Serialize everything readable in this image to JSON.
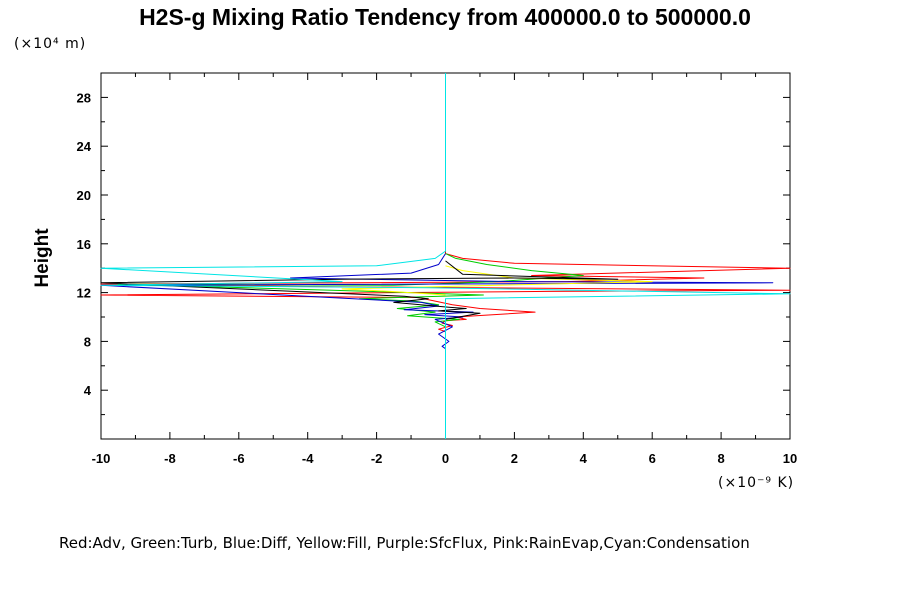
{
  "chart_data": {
    "type": "line",
    "title": "H2S-g Mixing Ratio Tendency from 400000.0 to 500000.0",
    "xlabel": "",
    "ylabel": "Height",
    "x_unit": "(×10⁻⁹ K)",
    "y_unit": "(×10⁴ m)",
    "xlim": [
      -10,
      10
    ],
    "ylim": [
      0,
      30
    ],
    "xticks": [
      "-10",
      "-8",
      "-6",
      "-4",
      "-2",
      "0",
      "2",
      "4",
      "6",
      "8",
      "10"
    ],
    "yticks": [
      "4",
      "8",
      "12",
      "16",
      "20",
      "24",
      "28"
    ],
    "legend_text": "Red:Adv,  Green:Turb,  Blue:Diff,  Yellow:Fill,  Purple:SfcFlux,  Pink:RainEvap,Cyan:Condensation",
    "series": [
      {
        "name": "Adv",
        "color": "#ff0000",
        "points": [
          [
            0,
            7.5
          ],
          [
            0,
            8.8
          ],
          [
            -0.2,
            9.0
          ],
          [
            0.2,
            9.3
          ],
          [
            -0.1,
            9.5
          ],
          [
            0,
            9.7
          ],
          [
            0.6,
            9.8
          ],
          [
            0.3,
            10.0
          ],
          [
            2.6,
            10.4
          ],
          [
            1.0,
            10.7
          ],
          [
            0.2,
            11.0
          ],
          [
            -0.3,
            11.3
          ],
          [
            -0.8,
            11.6
          ],
          [
            -11,
            11.8
          ],
          [
            -1.5,
            12.0
          ],
          [
            3,
            12.1
          ],
          [
            10.5,
            12.2
          ],
          [
            -4,
            12.5
          ],
          [
            -10.5,
            12.7
          ],
          [
            3.5,
            12.9
          ],
          [
            7.5,
            13.2
          ],
          [
            2.5,
            13.4
          ],
          [
            10.5,
            14.0
          ],
          [
            2,
            14.4
          ],
          [
            0.5,
            14.8
          ],
          [
            0,
            15.2
          ],
          [
            0,
            30
          ]
        ]
      },
      {
        "name": "Turb",
        "color": "#00cc00",
        "points": [
          [
            0,
            8.5
          ],
          [
            0,
            9.2
          ],
          [
            -0.3,
            9.6
          ],
          [
            0.4,
            9.8
          ],
          [
            -1.1,
            10.1
          ],
          [
            -0.3,
            10.4
          ],
          [
            -1.4,
            10.7
          ],
          [
            -0.2,
            11.0
          ],
          [
            -0.9,
            11.3
          ],
          [
            -2.5,
            11.5
          ],
          [
            1.1,
            11.8
          ],
          [
            -3.3,
            12.2
          ],
          [
            -9.5,
            12.7
          ],
          [
            -1.5,
            12.6
          ],
          [
            1.5,
            12.9
          ],
          [
            4,
            13.4
          ],
          [
            2.5,
            13.8
          ],
          [
            1.2,
            14.3
          ],
          [
            0.3,
            14.8
          ],
          [
            0,
            15.2
          ]
        ]
      },
      {
        "name": "Diff",
        "color": "#0000cc",
        "points": [
          [
            0,
            7.0
          ],
          [
            0,
            7.4
          ],
          [
            -0.1,
            7.6
          ],
          [
            0.1,
            8.0
          ],
          [
            -0.2,
            8.6
          ],
          [
            0.2,
            9.2
          ],
          [
            -0.3,
            9.8
          ],
          [
            0.5,
            10.0
          ],
          [
            -0.6,
            10.2
          ],
          [
            0.8,
            10.4
          ],
          [
            -1.2,
            10.6
          ],
          [
            -0.2,
            10.9
          ],
          [
            -0.7,
            11.2
          ],
          [
            -10,
            12.6
          ],
          [
            9.5,
            12.8
          ],
          [
            2,
            12.9
          ],
          [
            -4.5,
            13.2
          ],
          [
            -1,
            13.6
          ],
          [
            -0.2,
            14.3
          ],
          [
            0,
            15.2
          ]
        ]
      },
      {
        "name": "Fill",
        "color": "#ffff00",
        "points": [
          [
            0,
            11.8
          ],
          [
            -1.6,
            12.1
          ],
          [
            -3,
            12.3
          ],
          [
            6,
            12.9
          ],
          [
            2,
            13.2
          ],
          [
            0.5,
            13.8
          ],
          [
            0,
            14.2
          ]
        ]
      },
      {
        "name": "Black",
        "color": "#000000",
        "points": [
          [
            0,
            9.8
          ],
          [
            1.0,
            10.3
          ],
          [
            -0.2,
            10.5
          ],
          [
            0.6,
            10.7
          ],
          [
            0.1,
            10.8
          ],
          [
            -1.5,
            11.2
          ],
          [
            -0.5,
            11.5
          ],
          [
            -1.2,
            11.7
          ],
          [
            -10,
            12.8
          ],
          [
            -3,
            13.1
          ],
          [
            2,
            13.2
          ],
          [
            5,
            13.1
          ],
          [
            0.5,
            13.5
          ],
          [
            0,
            14.6
          ]
        ]
      },
      {
        "name": "Condensation",
        "color": "#00e5e5",
        "points": [
          [
            0,
            0
          ],
          [
            0,
            11.5
          ],
          [
            10.5,
            11.9
          ],
          [
            -0.5,
            12.4
          ],
          [
            -10.5,
            12.6
          ],
          [
            -3,
            12.9
          ],
          [
            -10.5,
            14.0
          ],
          [
            -2,
            14.2
          ],
          [
            -0.3,
            14.8
          ],
          [
            0,
            15.4
          ],
          [
            0,
            30
          ]
        ]
      }
    ]
  }
}
